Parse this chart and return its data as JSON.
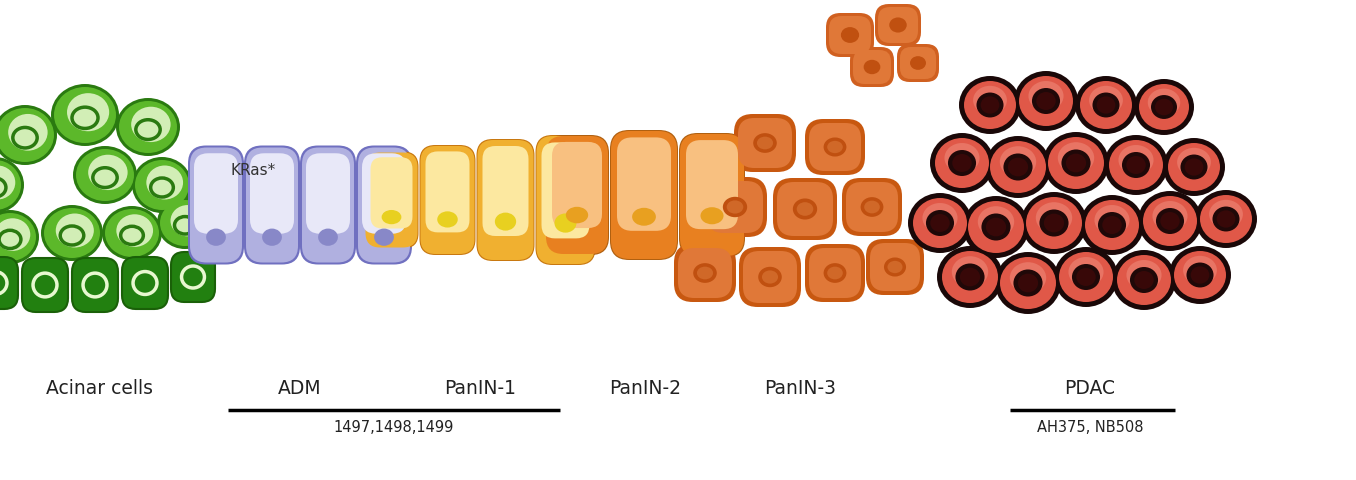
{
  "background_color": "#ffffff",
  "labels": {
    "acinar": "Acinar cells",
    "adm": "ADM",
    "panin1": "PanIN-1",
    "panin2": "PanIN-2",
    "panin3": "PanIN-3",
    "pdac": "PDAC"
  },
  "sublabels": {
    "adm_panin1": "1497,1498,1499",
    "pdac": "AH375, NB508"
  },
  "kras": "KRas*",
  "colors": {
    "acinar_border": "#2a7a10",
    "acinar_fill": "#5cb82a",
    "acinar_light": "#e8f8d0",
    "acinar_nucleus_border": "#2a7a10",
    "acinar_nucleus_fill": "#c8e8a0",
    "acinar_dark_fill": "#228010",
    "acinar_dark_border": "#1a6008",
    "adm_border": "#7070c0",
    "adm_fill_top": "#e8e8f8",
    "adm_fill_bot": "#b0b0e0",
    "adm_nucleus": "#8888c8",
    "panin1_border": "#d89020",
    "panin1_fill": "#f0b030",
    "panin1_light": "#fce8a0",
    "panin1_nucleus": "#e8d020",
    "panin2_fill": "#e88020",
    "panin2_light": "#f8c080",
    "panin2_nucleus": "#e8a020",
    "panin3_fill": "#c85810",
    "panin3_light": "#e07838",
    "panin3_nucleus_border": "#c05010",
    "panin3_nucleus_fill": "#d06828",
    "panin3_float_fill": "#d06020",
    "panin3_float_nucleus": "#c05010",
    "pdac_outer": "#1a0808",
    "pdac_fill": "#e05848",
    "pdac_gradient": "#f09080",
    "pdac_nucleus_outer": "#200808",
    "pdac_nucleus_fill": "#380808"
  }
}
